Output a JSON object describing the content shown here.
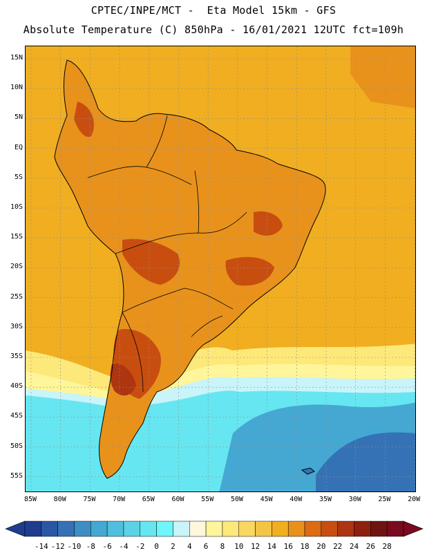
{
  "title_line1": "CPTEC/INPE/MCT -  Eta Model 15km - GFS",
  "title_line2": "Absolute Temperature (C) 850hPa - 16/01/2021 12UTC fct=109h",
  "lat_ticks": [
    "15N",
    "10N",
    "5N",
    "EQ",
    "5S",
    "10S",
    "15S",
    "20S",
    "25S",
    "30S",
    "35S",
    "40S",
    "45S",
    "50S",
    "55S"
  ],
  "lon_ticks": [
    "85W",
    "80W",
    "75W",
    "70W",
    "65W",
    "60W",
    "55W",
    "50W",
    "45W",
    "40W",
    "35W",
    "30W",
    "25W",
    "20W"
  ],
  "colorbar": {
    "labels": [
      "-14",
      "-12",
      "-10",
      "-8",
      "-6",
      "-4",
      "-2",
      "0",
      "2",
      "4",
      "6",
      "8",
      "10",
      "12",
      "14",
      "16",
      "18",
      "20",
      "22",
      "24",
      "26",
      "28"
    ],
    "colors": [
      "#1f3c8f",
      "#2a56a6",
      "#3472b5",
      "#3d8ec4",
      "#45a8d2",
      "#4fbfdd",
      "#5ad3e6",
      "#66e6f0",
      "#6ef6fa",
      "#c8f4fa",
      "#fff6de",
      "#fff59a",
      "#fde87a",
      "#f9d760",
      "#f4c446",
      "#f0ae20",
      "#e8921c",
      "#dd6a14",
      "#c84e10",
      "#ad3510",
      "#8f200e",
      "#6e1410",
      "#7a0a1e"
    ]
  },
  "map": {
    "ocean_color": "#f0ae20",
    "land_color": "#e8921c",
    "hot_color": "#c84e10",
    "cold_colors": [
      "#fde87a",
      "#fff59a",
      "#c8f4fa",
      "#66e6f0",
      "#45a8d2",
      "#3472b5"
    ],
    "coast_color": "#000000",
    "grid_color": "#8f8f8f"
  }
}
